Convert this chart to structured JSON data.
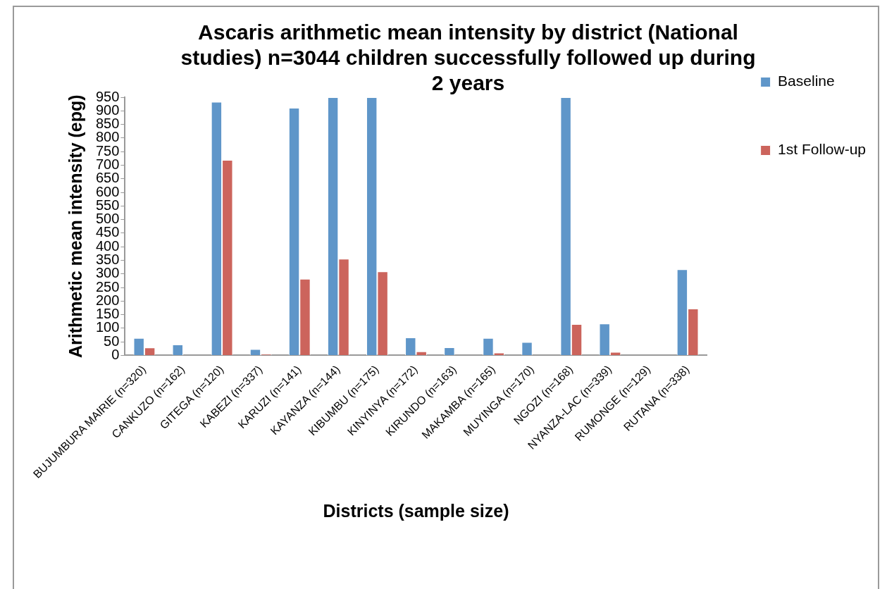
{
  "chart_data": {
    "type": "bar",
    "title": "Ascaris arithmetic mean intensity by district (National studies) n=3044 children successfully followed up during 2 years",
    "xlabel": "Districts (sample size)",
    "ylabel": "Arithmetic mean intensity (epg)",
    "categories": [
      "BUJUMBURA MAIRIE (n=320)",
      "CANKUZO (n=162)",
      "GITEGA (n=120)",
      "KABEZI (n=337)",
      "KARUZI (n=141)",
      "KAYANZA (n=144)",
      "KIBUMBU (n=175)",
      "KINYINYA (n=172)",
      "KIRUNDO (n=163)",
      "MAKAMBA (n=165)",
      "MUYINGA (n=170)",
      "NGOZI (n=168)",
      "NYANZA-LAC (n=339)",
      "RUMONGE (n=129)",
      "RUTANA (n=338)"
    ],
    "series": [
      {
        "name": "Baseline",
        "color": "#5f96c9",
        "values": [
          64,
          40,
          933,
          23,
          911,
          950,
          950,
          66,
          30,
          64,
          49,
          950,
          117,
          1,
          317
        ]
      },
      {
        "name": "1st Follow-up",
        "color": "#cc645c",
        "values": [
          29,
          1,
          719,
          5,
          282,
          356,
          309,
          15,
          1,
          10,
          1,
          115,
          13,
          1,
          172
        ]
      }
    ],
    "ylim": [
      0,
      950
    ],
    "yticks": [
      0,
      50,
      100,
      150,
      200,
      250,
      300,
      350,
      400,
      450,
      500,
      550,
      600,
      650,
      700,
      750,
      800,
      850,
      900,
      950
    ],
    "grid": false,
    "legend": "right"
  }
}
